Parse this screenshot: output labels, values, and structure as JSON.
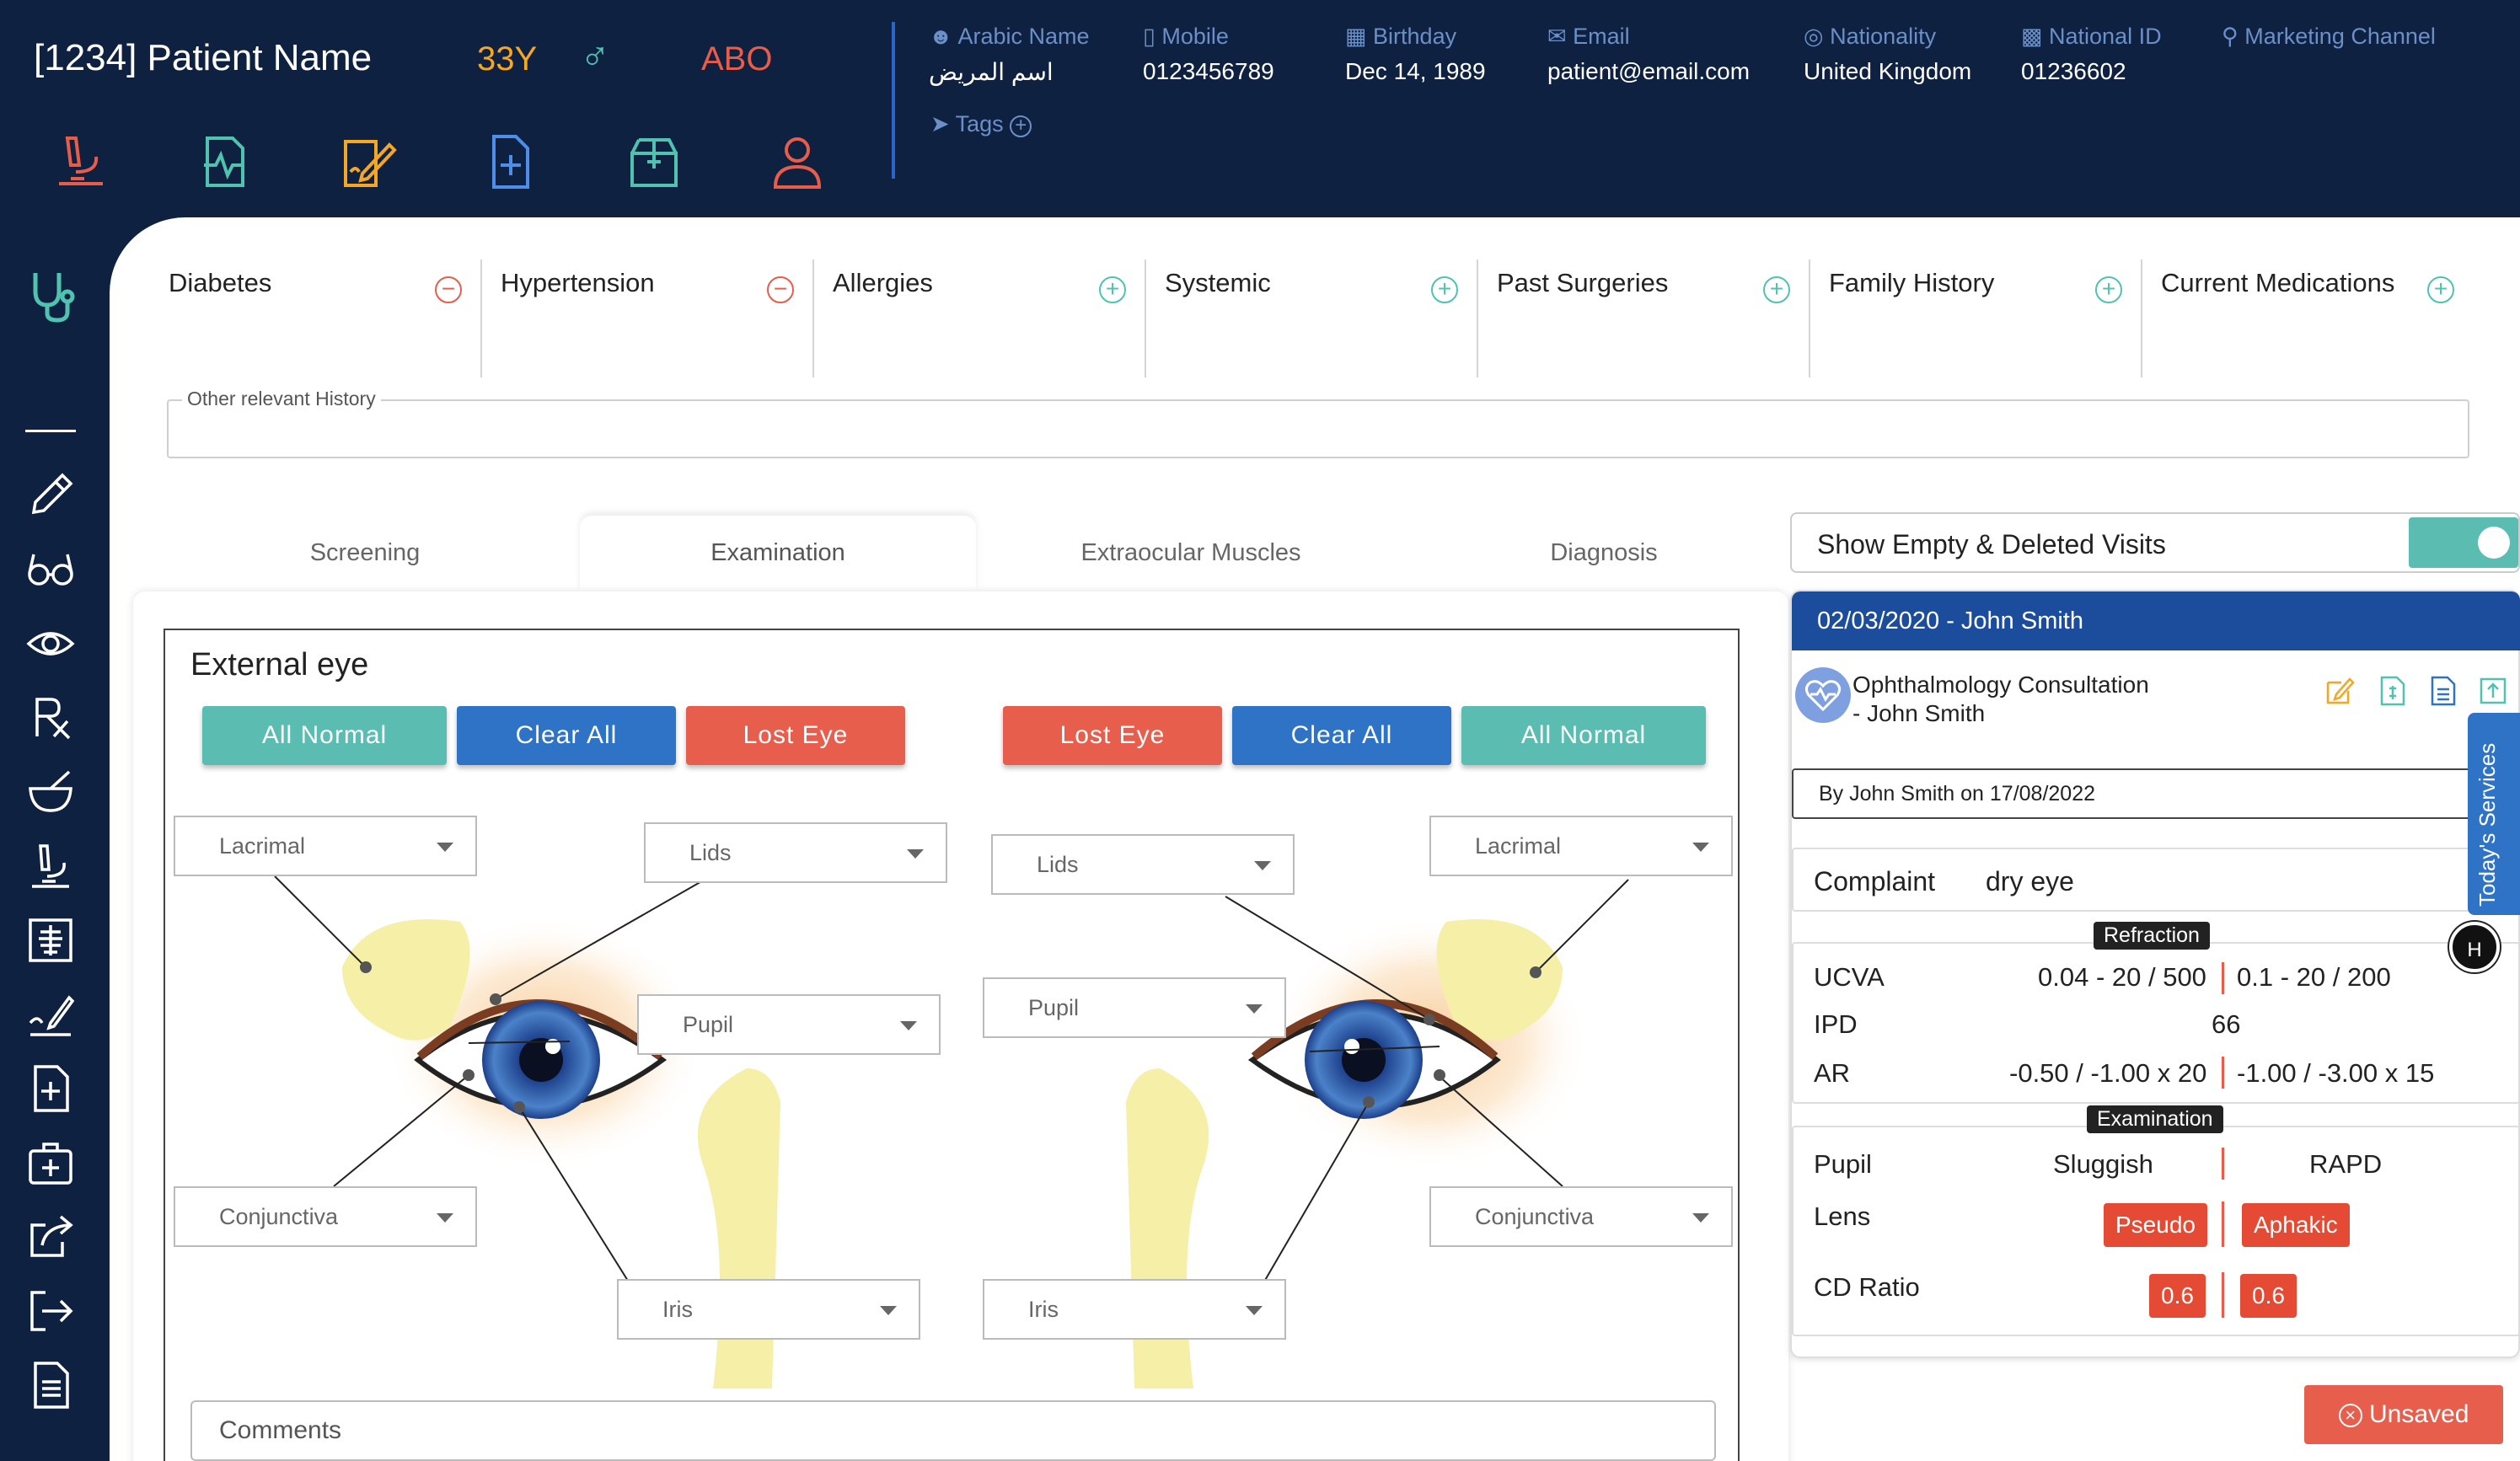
{
  "patient": {
    "name": "[1234] Patient Name",
    "age": "33Y",
    "gender_symbol": "♂",
    "blood_group": "ABO"
  },
  "info_fields": [
    {
      "label": "Arabic Name",
      "value": "اسم المريض",
      "icon": "user-icon"
    },
    {
      "label": "Mobile",
      "value": "0123456789",
      "icon": "phone-icon"
    },
    {
      "label": "Birthday",
      "value": "Dec 14, 1989",
      "icon": "calendar-icon"
    },
    {
      "label": "Email",
      "value": "patient@email.com",
      "icon": "envelope-icon"
    },
    {
      "label": "Nationality",
      "value": "United Kingdom",
      "icon": "globe-icon"
    },
    {
      "label": "National ID",
      "value": "01236602",
      "icon": "id-card-icon"
    },
    {
      "label": "Marketing Channel",
      "value": "",
      "icon": "search-location-icon"
    }
  ],
  "tags_label": "Tags",
  "history": [
    {
      "name": "Diabetes",
      "state": "minus"
    },
    {
      "name": "Hypertension",
      "state": "minus"
    },
    {
      "name": "Allergies",
      "state": "plus"
    },
    {
      "name": "Systemic",
      "state": "plus"
    },
    {
      "name": "Past Surgeries",
      "state": "plus"
    },
    {
      "name": "Family History",
      "state": "plus"
    },
    {
      "name": "Current Medications",
      "state": "plus"
    }
  ],
  "other_history_label": "Other relevant History",
  "tabs": [
    "Screening",
    "Examination",
    "Extraocular Muscles",
    "Diagnosis"
  ],
  "active_tab": "Examination",
  "external_eye": {
    "title": "External eye",
    "left_buttons": [
      "All Normal",
      "Clear All",
      "Lost Eye"
    ],
    "right_buttons": [
      "Lost Eye",
      "Clear All",
      "All Normal"
    ],
    "left_selects": {
      "lacrimal": "Lacrimal",
      "lids": "Lids",
      "pupil": "Pupil",
      "conjunctiva": "Conjunctiva",
      "iris": "Iris"
    },
    "right_selects": {
      "lids": "Lids",
      "lacrimal": "Lacrimal",
      "pupil": "Pupil",
      "conjunctiva": "Conjunctiva",
      "iris": "Iris"
    },
    "comments_placeholder": "Comments"
  },
  "right_panel": {
    "toggle_label": "Show Empty & Deleted Visits",
    "toggle_on": true,
    "visit_header": "02/03/2020 - John Smith",
    "service_line1": "Ophthalmology Consultation",
    "service_line2": "- John Smith",
    "by_line": "By John Smith on 17/08/2022",
    "complaint_label": "Complaint",
    "complaint_value": "dry eye",
    "refraction_tag": "Refraction",
    "refraction": [
      {
        "label": "UCVA",
        "od": "0.04 - 20 / 500",
        "os": "0.1 - 20 / 200"
      },
      {
        "label": "IPD",
        "value": "66"
      },
      {
        "label": "AR",
        "od": "-0.50 / -1.00 x 20",
        "os": "-1.00 / -3.00 x 15"
      }
    ],
    "examination_tag": "Examination",
    "examination": {
      "pupil_label": "Pupil",
      "pupil_od": "Sluggish",
      "pupil_os": "RAPD",
      "lens_label": "Lens",
      "lens_od": "Pseudo",
      "lens_os": "Aphakic",
      "cd_label": "CD Ratio",
      "cd_od": "0.6",
      "cd_os": "0.6"
    },
    "todays_services": "Today's Services",
    "h_badge": "H"
  },
  "unsaved_label": "Unsaved",
  "colors": {
    "navy": "#0f2140",
    "teal": "#5bbdb1",
    "blue": "#2f73c6",
    "red": "#e75e4d",
    "orange": "#f5a623"
  }
}
